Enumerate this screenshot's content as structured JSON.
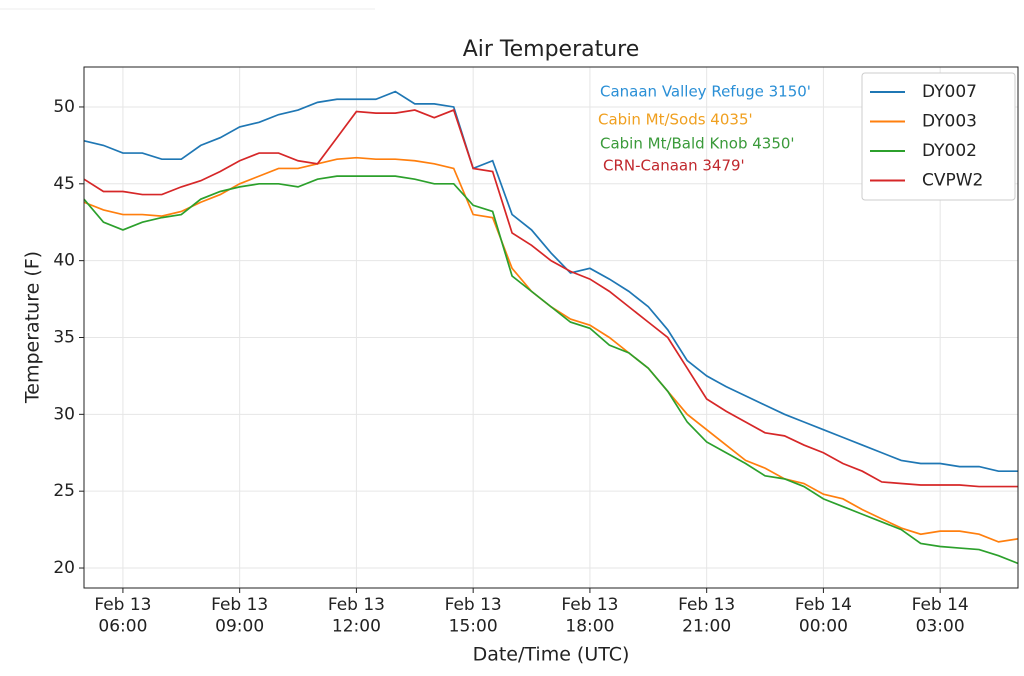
{
  "chart_data": {
    "type": "line",
    "title": "Air Temperature",
    "xlabel": "Date/Time (UTC)",
    "ylabel": "Temperature (F)",
    "x": [
      "Feb 13 05:00",
      "Feb 13 05:30",
      "Feb 13 06:00",
      "Feb 13 06:30",
      "Feb 13 07:00",
      "Feb 13 07:30",
      "Feb 13 08:00",
      "Feb 13 08:30",
      "Feb 13 09:00",
      "Feb 13 09:30",
      "Feb 13 10:00",
      "Feb 13 10:30",
      "Feb 13 11:00",
      "Feb 13 11:30",
      "Feb 13 12:00",
      "Feb 13 12:30",
      "Feb 13 13:00",
      "Feb 13 13:30",
      "Feb 13 14:00",
      "Feb 13 14:30",
      "Feb 13 15:00",
      "Feb 13 15:30",
      "Feb 13 16:00",
      "Feb 13 16:30",
      "Feb 13 17:00",
      "Feb 13 17:30",
      "Feb 13 18:00",
      "Feb 13 18:30",
      "Feb 13 19:00",
      "Feb 13 19:30",
      "Feb 13 20:00",
      "Feb 13 20:30",
      "Feb 13 21:00",
      "Feb 13 21:30",
      "Feb 13 22:00",
      "Feb 13 22:30",
      "Feb 13 23:00",
      "Feb 13 23:30",
      "Feb 14 00:00",
      "Feb 14 00:30",
      "Feb 14 01:00",
      "Feb 14 01:30",
      "Feb 14 02:00",
      "Feb 14 02:30",
      "Feb 14 03:00",
      "Feb 14 03:30",
      "Feb 14 04:00",
      "Feb 14 04:30",
      "Feb 14 05:00"
    ],
    "series": [
      {
        "name": "DY007",
        "color": "#1f77b4",
        "values": [
          47.8,
          47.5,
          47.0,
          47.0,
          46.6,
          46.6,
          47.5,
          48.0,
          48.7,
          49.0,
          49.5,
          49.8,
          50.3,
          50.5,
          50.5,
          50.5,
          51.0,
          50.2,
          50.2,
          50.0,
          46.0,
          46.5,
          43.0,
          42.0,
          40.5,
          39.2,
          39.5,
          38.8,
          38.0,
          37.0,
          35.5,
          33.5,
          32.5,
          31.8,
          31.2,
          30.6,
          30.0,
          29.5,
          29.0,
          28.5,
          28.0,
          27.5,
          27.0,
          26.8,
          26.8,
          26.6,
          26.6,
          26.3,
          26.3
        ]
      },
      {
        "name": "DY003",
        "color": "#ff7f0e",
        "values": [
          43.8,
          43.3,
          43.0,
          43.0,
          42.9,
          43.2,
          43.8,
          44.3,
          45.0,
          45.5,
          46.0,
          46.0,
          46.3,
          46.6,
          46.7,
          46.6,
          46.6,
          46.5,
          46.3,
          46.0,
          43.0,
          42.8,
          39.5,
          38.0,
          37.0,
          36.2,
          35.8,
          35.0,
          34.0,
          33.0,
          31.5,
          30.0,
          29.0,
          28.0,
          27.0,
          26.5,
          25.8,
          25.5,
          24.8,
          24.5,
          23.8,
          23.2,
          22.6,
          22.2,
          22.4,
          22.4,
          22.2,
          21.7,
          21.9
        ]
      },
      {
        "name": "DY002",
        "color": "#2ca02c",
        "values": [
          44.0,
          42.5,
          42.0,
          42.5,
          42.8,
          43.0,
          44.0,
          44.5,
          44.8,
          45.0,
          45.0,
          44.8,
          45.3,
          45.5,
          45.5,
          45.5,
          45.5,
          45.3,
          45.0,
          45.0,
          43.6,
          43.2,
          39.0,
          38.0,
          37.0,
          36.0,
          35.6,
          34.5,
          34.0,
          33.0,
          31.5,
          29.5,
          28.2,
          27.5,
          26.8,
          26.0,
          25.8,
          25.3,
          24.5,
          24.0,
          23.5,
          23.0,
          22.5,
          21.6,
          21.4,
          21.3,
          21.2,
          20.8,
          20.3
        ]
      },
      {
        "name": "CVPW2",
        "color": "#d62728",
        "values": [
          45.3,
          44.5,
          44.5,
          44.3,
          44.3,
          44.8,
          45.2,
          45.8,
          46.5,
          47.0,
          47.0,
          46.5,
          46.3,
          48.0,
          49.7,
          49.6,
          49.6,
          49.8,
          49.3,
          49.8,
          46.0,
          45.8,
          41.8,
          41.0,
          40.0,
          39.3,
          38.8,
          38.0,
          37.0,
          36.0,
          35.0,
          33.0,
          31.0,
          30.2,
          29.5,
          28.8,
          28.6,
          28.0,
          27.5,
          26.8,
          26.3,
          25.6,
          25.5,
          25.4,
          25.4,
          25.4,
          25.3,
          25.3,
          25.3
        ]
      }
    ],
    "xlim": [
      "Feb 13 05:00",
      "Feb 14 05:00"
    ],
    "xticks": [
      {
        "value": "Feb 13 06:00",
        "label": "Feb 13\n06:00"
      },
      {
        "value": "Feb 13 09:00",
        "label": "Feb 13\n09:00"
      },
      {
        "value": "Feb 13 12:00",
        "label": "Feb 13\n12:00"
      },
      {
        "value": "Feb 13 15:00",
        "label": "Feb 13\n15:00"
      },
      {
        "value": "Feb 13 18:00",
        "label": "Feb 13\n18:00"
      },
      {
        "value": "Feb 13 21:00",
        "label": "Feb 13\n21:00"
      },
      {
        "value": "Feb 14 00:00",
        "label": "Feb 14\n00:00"
      },
      {
        "value": "Feb 14 03:00",
        "label": "Feb 14\n03:00"
      }
    ],
    "ylim": [
      18.7,
      52.6
    ],
    "yticks": [
      20,
      25,
      30,
      35,
      40,
      45,
      50
    ],
    "grid": true,
    "legend": "upper right",
    "annotations": [
      {
        "text": "Canaan Valley Refuge 3150'",
        "color": "#2a8fd6"
      },
      {
        "text": "Cabin Mt/Sods 4035'",
        "color": "#f0a020"
      },
      {
        "text": "Cabin Mt/Bald Knob 4350'",
        "color": "#3a9a3a"
      },
      {
        "text": "CRN-Canaan 3479'",
        "color": "#c0282d"
      }
    ]
  }
}
